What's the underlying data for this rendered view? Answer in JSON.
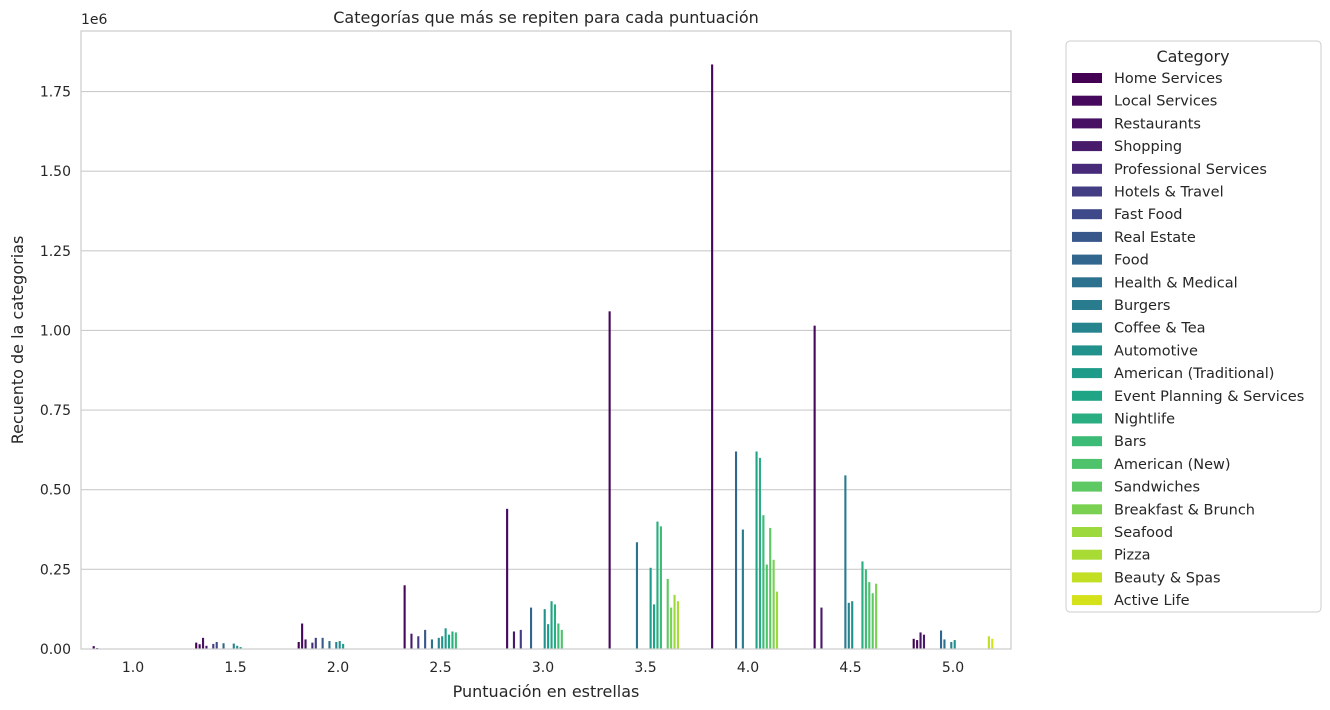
{
  "chart_data": {
    "type": "bar",
    "title": "Categorías que más se repiten para cada puntuación",
    "xlabel": "Puntuación en estrellas",
    "ylabel": "Recuento de la categorias",
    "y_offset_text": "1e6",
    "y_scale": 1000000,
    "ylim": [
      0,
      1940000
    ],
    "yticks": [
      0,
      250000,
      500000,
      750000,
      1000000,
      1250000,
      1500000,
      1750000
    ],
    "ytick_labels": [
      "0.00",
      "0.25",
      "0.50",
      "0.75",
      "1.00",
      "1.25",
      "1.50",
      "1.75"
    ],
    "grid": "horizontal",
    "categories": [
      "1.0",
      "1.5",
      "2.0",
      "2.5",
      "3.0",
      "3.5",
      "4.0",
      "4.5",
      "5.0"
    ],
    "legend": {
      "title": "Category",
      "placement": "outside-right"
    },
    "series": [
      {
        "name": "Home Services",
        "color": "#440154",
        "values": [
          9000,
          20000,
          22000,
          0,
          0,
          0,
          0,
          0,
          32000
        ]
      },
      {
        "name": "Local Services",
        "color": "#46085c",
        "values": [
          3000,
          15000,
          80000,
          200000,
          440000,
          1060000,
          1835000,
          1015000,
          28000
        ]
      },
      {
        "name": "Restaurants",
        "color": "#471063",
        "values": [
          0,
          35000,
          30000,
          0,
          0,
          0,
          0,
          0,
          52000
        ]
      },
      {
        "name": "Shopping",
        "color": "#481a6c",
        "values": [
          0,
          10000,
          0,
          48000,
          55000,
          0,
          0,
          130000,
          45000
        ]
      },
      {
        "name": "Professional Services",
        "color": "#472a7a",
        "values": [
          0,
          0,
          20000,
          0,
          0,
          0,
          0,
          0,
          0
        ]
      },
      {
        "name": "Hotels & Travel",
        "color": "#433d84",
        "values": [
          0,
          16000,
          35000,
          40000,
          60000,
          0,
          0,
          0,
          0
        ]
      },
      {
        "name": "Fast Food",
        "color": "#3e4989",
        "values": [
          0,
          22000,
          0,
          0,
          0,
          0,
          0,
          0,
          0
        ]
      },
      {
        "name": "Real Estate",
        "color": "#38588c",
        "values": [
          0,
          0,
          35000,
          60000,
          0,
          0,
          0,
          0,
          0
        ]
      },
      {
        "name": "Food",
        "color": "#31668e",
        "values": [
          0,
          18000,
          0,
          0,
          130000,
          0,
          620000,
          0,
          58000
        ]
      },
      {
        "name": "Health & Medical",
        "color": "#2c728e",
        "values": [
          0,
          0,
          25000,
          30000,
          0,
          335000,
          0,
          0,
          30000
        ]
      },
      {
        "name": "Burgers",
        "color": "#297b8e",
        "values": [
          0,
          0,
          0,
          0,
          0,
          0,
          375000,
          545000,
          0
        ]
      },
      {
        "name": "Coffee & Tea",
        "color": "#25848e",
        "values": [
          0,
          17000,
          22000,
          35000,
          0,
          0,
          0,
          145000,
          22000
        ]
      },
      {
        "name": "Automotive",
        "color": "#21918c",
        "values": [
          0,
          10000,
          25000,
          40000,
          125000,
          0,
          0,
          150000,
          28000
        ]
      },
      {
        "name": "American (Traditional)",
        "color": "#1e9c89",
        "values": [
          0,
          6000,
          16000,
          65000,
          78000,
          255000,
          0,
          0,
          0
        ]
      },
      {
        "name": "Event Planning & Services",
        "color": "#20a486",
        "values": [
          0,
          0,
          0,
          45000,
          150000,
          140000,
          620000,
          0,
          0
        ]
      },
      {
        "name": "Nightlife",
        "color": "#28ae80",
        "values": [
          0,
          0,
          0,
          55000,
          140000,
          400000,
          600000,
          275000,
          0
        ]
      },
      {
        "name": "Bars",
        "color": "#3bbb75",
        "values": [
          0,
          0,
          0,
          52000,
          80000,
          385000,
          420000,
          250000,
          0
        ]
      },
      {
        "name": "American (New)",
        "color": "#4ec36b",
        "values": [
          0,
          0,
          0,
          0,
          60000,
          0,
          265000,
          210000,
          0
        ]
      },
      {
        "name": "Sandwiches",
        "color": "#5ec962",
        "values": [
          0,
          0,
          0,
          0,
          0,
          220000,
          380000,
          175000,
          0
        ]
      },
      {
        "name": "Breakfast & Brunch",
        "color": "#7ad151",
        "values": [
          0,
          0,
          0,
          0,
          0,
          130000,
          280000,
          205000,
          0
        ]
      },
      {
        "name": "Seafood",
        "color": "#9bd93c",
        "values": [
          0,
          0,
          0,
          0,
          0,
          170000,
          180000,
          0,
          0
        ]
      },
      {
        "name": "Pizza",
        "color": "#a8db34",
        "values": [
          0,
          0,
          0,
          0,
          0,
          150000,
          0,
          0,
          0
        ]
      },
      {
        "name": "Beauty & Spas",
        "color": "#c2df23",
        "values": [
          0,
          0,
          0,
          0,
          0,
          0,
          0,
          0,
          40000
        ]
      },
      {
        "name": "Active Life",
        "color": "#d5e21a",
        "values": [
          0,
          0,
          0,
          0,
          0,
          0,
          0,
          0,
          32000
        ]
      }
    ]
  }
}
